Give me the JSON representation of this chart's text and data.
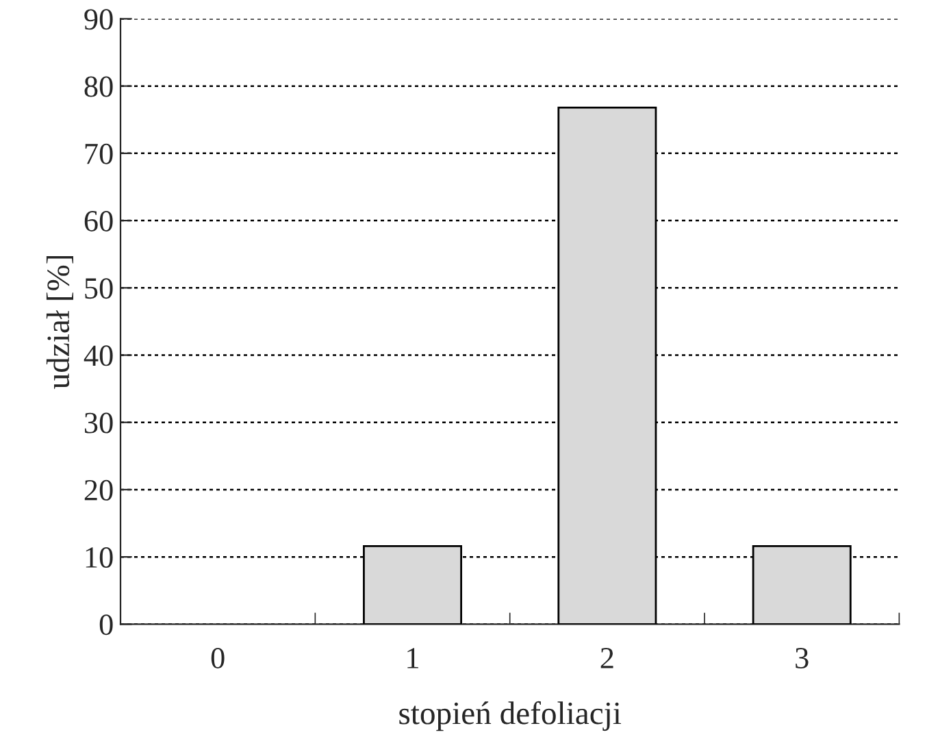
{
  "chart_data": {
    "type": "bar",
    "xlabel": "stopień defoliacji",
    "ylabel": "udział [%]",
    "categories": [
      "0",
      "1",
      "2",
      "3"
    ],
    "series": [
      {
        "color": "#d9d9d9",
        "values": [
          0,
          11.6,
          76.8,
          11.6
        ]
      }
    ],
    "ylim": [
      0,
      90
    ],
    "yticks": [
      0,
      10,
      20,
      30,
      40,
      50,
      60,
      70,
      80,
      90
    ],
    "grid": "y"
  }
}
